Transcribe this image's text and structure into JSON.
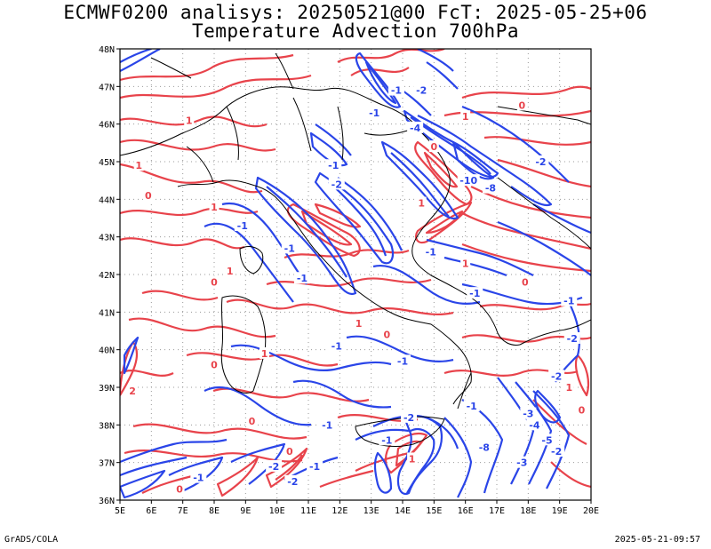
{
  "title_line1": "ECMWF0200 analisys: 20250521@00 FcT: 2025-05-25+06",
  "title_line2": "Temperature Advection 700hPa",
  "footer_left": "GrADS/COLA",
  "footer_right": "2025-05-21-09:57",
  "colors": {
    "positive": "#e8434b",
    "negative": "#2a45e8",
    "coast": "#000000",
    "grid": "#9a9a9a"
  },
  "map": {
    "lon_range": [
      5,
      20
    ],
    "lat_range": [
      36,
      48
    ],
    "lon_ticks": [
      "5E",
      "6E",
      "7E",
      "8E",
      "9E",
      "10E",
      "11E",
      "12E",
      "13E",
      "14E",
      "15E",
      "16E",
      "17E",
      "18E",
      "19E",
      "20E"
    ],
    "lat_ticks": [
      "36N",
      "37N",
      "38N",
      "39N",
      "40N",
      "41N",
      "42N",
      "43N",
      "44N",
      "45N",
      "46N",
      "47N",
      "48N"
    ]
  },
  "contour_labels": [
    {
      "text": "1",
      "lon": 7.2,
      "lat": 46.1,
      "sign": "pos"
    },
    {
      "text": "1",
      "lon": 5.6,
      "lat": 44.9,
      "sign": "pos"
    },
    {
      "text": "0",
      "lon": 5.9,
      "lat": 44.1,
      "sign": "pos"
    },
    {
      "text": "-1",
      "lon": 8.9,
      "lat": 43.3,
      "sign": "neg"
    },
    {
      "text": "1",
      "lon": 8.5,
      "lat": 42.1,
      "sign": "pos"
    },
    {
      "text": "0",
      "lon": 8.0,
      "lat": 41.8,
      "sign": "pos"
    },
    {
      "text": "1",
      "lon": 8.0,
      "lat": 43.8,
      "sign": "pos"
    },
    {
      "text": "-1",
      "lon": 10.4,
      "lat": 42.7,
      "sign": "neg"
    },
    {
      "text": "-1",
      "lon": 10.8,
      "lat": 41.9,
      "sign": "neg"
    },
    {
      "text": "-1",
      "lon": 11.8,
      "lat": 44.9,
      "sign": "neg"
    },
    {
      "text": "-2",
      "lon": 11.9,
      "lat": 44.4,
      "sign": "neg"
    },
    {
      "text": "-1",
      "lon": 13.8,
      "lat": 46.9,
      "sign": "neg"
    },
    {
      "text": "-2",
      "lon": 14.6,
      "lat": 46.9,
      "sign": "neg"
    },
    {
      "text": "-1",
      "lon": 13.1,
      "lat": 46.3,
      "sign": "neg"
    },
    {
      "text": "-4",
      "lon": 14.4,
      "lat": 45.9,
      "sign": "neg"
    },
    {
      "text": "1",
      "lon": 16.0,
      "lat": 46.2,
      "sign": "pos"
    },
    {
      "text": "0",
      "lon": 17.8,
      "lat": 46.5,
      "sign": "pos"
    },
    {
      "text": "-2",
      "lon": 18.4,
      "lat": 45.0,
      "sign": "neg"
    },
    {
      "text": "-10",
      "lon": 16.1,
      "lat": 44.5,
      "sign": "neg"
    },
    {
      "text": "-8",
      "lon": 16.8,
      "lat": 44.3,
      "sign": "neg"
    },
    {
      "text": "0",
      "lon": 15.0,
      "lat": 45.4,
      "sign": "pos"
    },
    {
      "text": "1",
      "lon": 14.6,
      "lat": 43.9,
      "sign": "pos"
    },
    {
      "text": "-1",
      "lon": 14.9,
      "lat": 42.6,
      "sign": "neg"
    },
    {
      "text": "1",
      "lon": 16.0,
      "lat": 42.3,
      "sign": "pos"
    },
    {
      "text": "-1",
      "lon": 16.3,
      "lat": 41.5,
      "sign": "neg"
    },
    {
      "text": "1",
      "lon": 12.6,
      "lat": 40.7,
      "sign": "pos"
    },
    {
      "text": "0",
      "lon": 13.5,
      "lat": 40.4,
      "sign": "pos"
    },
    {
      "text": "-1",
      "lon": 11.9,
      "lat": 40.1,
      "sign": "neg"
    },
    {
      "text": "-1",
      "lon": 14.0,
      "lat": 39.7,
      "sign": "neg"
    },
    {
      "text": "1",
      "lon": 9.6,
      "lat": 39.9,
      "sign": "pos"
    },
    {
      "text": "0",
      "lon": 8.0,
      "lat": 39.6,
      "sign": "pos"
    },
    {
      "text": "2",
      "lon": 5.4,
      "lat": 38.9,
      "sign": "pos"
    },
    {
      "text": "0",
      "lon": 9.2,
      "lat": 38.1,
      "sign": "pos"
    },
    {
      "text": "-1",
      "lon": 11.6,
      "lat": 38.0,
      "sign": "neg"
    },
    {
      "text": "-2",
      "lon": 14.2,
      "lat": 38.2,
      "sign": "neg"
    },
    {
      "text": "-1",
      "lon": 13.5,
      "lat": 37.6,
      "sign": "neg"
    },
    {
      "text": "1",
      "lon": 14.3,
      "lat": 37.1,
      "sign": "pos"
    },
    {
      "text": "-1",
      "lon": 16.2,
      "lat": 38.5,
      "sign": "neg"
    },
    {
      "text": "-8",
      "lon": 16.6,
      "lat": 37.4,
      "sign": "neg"
    },
    {
      "text": "-3",
      "lon": 18.0,
      "lat": 38.3,
      "sign": "neg"
    },
    {
      "text": "-4",
      "lon": 18.2,
      "lat": 38.0,
      "sign": "neg"
    },
    {
      "text": "-5",
      "lon": 18.6,
      "lat": 37.6,
      "sign": "neg"
    },
    {
      "text": "-2",
      "lon": 18.9,
      "lat": 37.3,
      "sign": "neg"
    },
    {
      "text": "-3",
      "lon": 17.8,
      "lat": 37.0,
      "sign": "neg"
    },
    {
      "text": "-2",
      "lon": 18.9,
      "lat": 39.3,
      "sign": "neg"
    },
    {
      "text": "-2",
      "lon": 19.4,
      "lat": 40.3,
      "sign": "neg"
    },
    {
      "text": "1",
      "lon": 19.3,
      "lat": 39.0,
      "sign": "pos"
    },
    {
      "text": "0",
      "lon": 19.7,
      "lat": 38.4,
      "sign": "pos"
    },
    {
      "text": "-1",
      "lon": 7.5,
      "lat": 36.6,
      "sign": "neg"
    },
    {
      "text": "0",
      "lon": 6.9,
      "lat": 36.3,
      "sign": "pos"
    },
    {
      "text": "-2",
      "lon": 9.9,
      "lat": 36.9,
      "sign": "neg"
    },
    {
      "text": "-2",
      "lon": 10.5,
      "lat": 36.5,
      "sign": "neg"
    },
    {
      "text": "-1",
      "lon": 11.2,
      "lat": 36.9,
      "sign": "neg"
    },
    {
      "text": "0",
      "lon": 10.4,
      "lat": 37.3,
      "sign": "pos"
    },
    {
      "text": "-1",
      "lon": 19.3,
      "lat": 41.3,
      "sign": "neg"
    },
    {
      "text": "0",
      "lon": 17.9,
      "lat": 41.8,
      "sign": "pos"
    }
  ]
}
